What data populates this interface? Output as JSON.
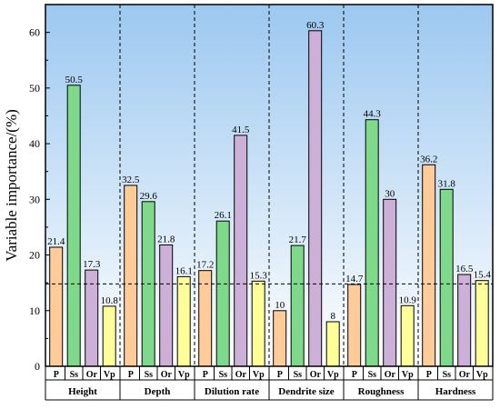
{
  "chart_data": {
    "type": "bar",
    "ylabel": "Variable importance/(%)",
    "ylim": [
      0,
      65
    ],
    "yticks": [
      0,
      10,
      20,
      30,
      40,
      50,
      60
    ],
    "subcategories": [
      "P",
      "Ss",
      "Or",
      "Vp"
    ],
    "subcategory_colors": [
      "#ffcc99",
      "#7fd98a",
      "#ccb0d8",
      "#ffff99"
    ],
    "groups": [
      {
        "name": "Height",
        "values": [
          21.4,
          50.5,
          17.3,
          10.8
        ]
      },
      {
        "name": "Depth",
        "values": [
          32.5,
          29.6,
          21.8,
          16.1
        ]
      },
      {
        "name": "Dilution rate",
        "values": [
          17.2,
          26.1,
          41.5,
          15.3
        ]
      },
      {
        "name": "Dendrite size",
        "values": [
          10,
          21.7,
          60.3,
          8
        ]
      },
      {
        "name": "Roughness",
        "values": [
          14.7,
          44.3,
          30,
          10.9
        ]
      },
      {
        "name": "Hardness",
        "values": [
          36.2,
          31.8,
          16.5,
          15.4
        ]
      }
    ],
    "reference_line": 14.8,
    "background_gradient": [
      "#9cc8f0",
      "#ffffff"
    ]
  }
}
